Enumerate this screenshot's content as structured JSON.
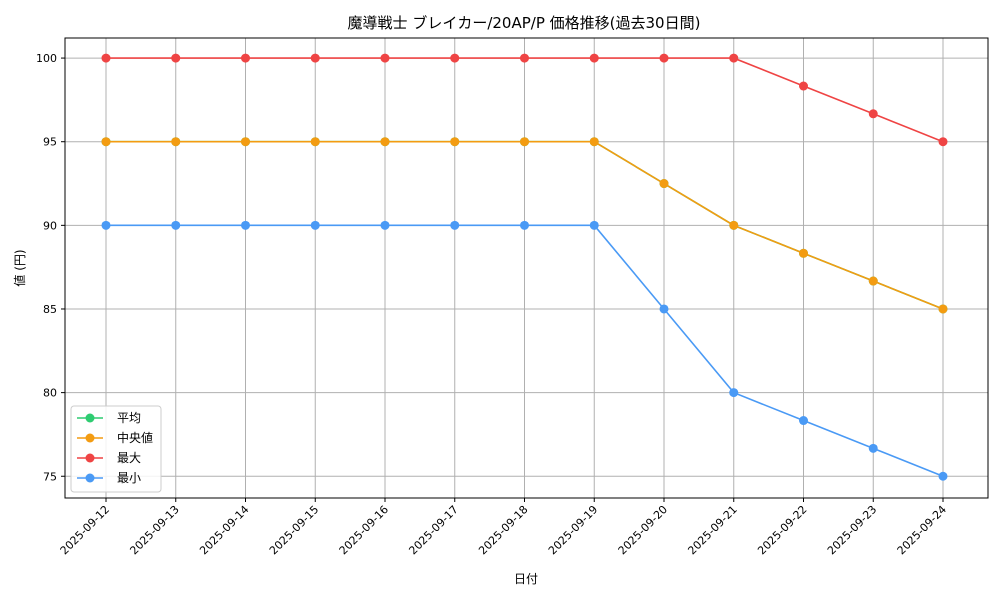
{
  "chart_data": {
    "type": "line",
    "title": "魔導戦士 ブレイカー/20AP/P 価格推移(過去30日間)",
    "xlabel": "日付",
    "ylabel": "値 (円)",
    "x": [
      "2025-09-12",
      "2025-09-13",
      "2025-09-14",
      "2025-09-15",
      "2025-09-16",
      "2025-09-17",
      "2025-09-18",
      "2025-09-19",
      "2025-09-20",
      "2025-09-21",
      "2025-09-22",
      "2025-09-23",
      "2025-09-24"
    ],
    "ylim": [
      73.7,
      101.2
    ],
    "yticks": [
      75,
      80,
      85,
      90,
      95,
      100
    ],
    "grid": true,
    "legend_position": "lower-left",
    "series": [
      {
        "name": "平均",
        "color": "#2ecc71",
        "values": [
          95,
          95,
          95,
          95,
          95,
          95,
          95,
          95,
          92.5,
          90,
          88.33,
          86.67,
          85
        ]
      },
      {
        "name": "中央値",
        "color": "#f39c12",
        "values": [
          95,
          95,
          95,
          95,
          95,
          95,
          95,
          95,
          92.5,
          90,
          88.33,
          86.67,
          85
        ]
      },
      {
        "name": "最大",
        "color": "#ef4444",
        "values": [
          100,
          100,
          100,
          100,
          100,
          100,
          100,
          100,
          100,
          100,
          98.33,
          96.67,
          95
        ]
      },
      {
        "name": "最小",
        "color": "#4a9af5",
        "values": [
          90,
          90,
          90,
          90,
          90,
          90,
          90,
          90,
          85,
          80,
          78.33,
          76.67,
          75
        ]
      }
    ]
  }
}
